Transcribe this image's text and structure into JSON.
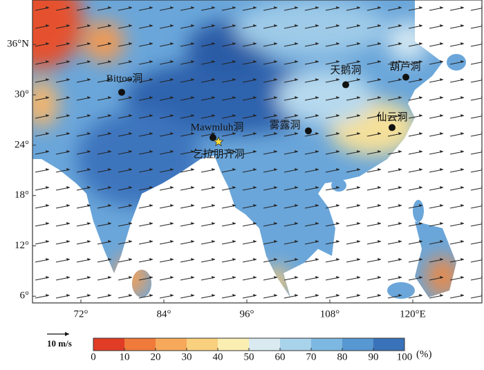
{
  "chart_data": {
    "type": "map",
    "xlim": [
      65,
      130
    ],
    "ylim": [
      5.2,
      41.3
    ],
    "xticks": [
      {
        "value": 72,
        "label": "72°"
      },
      {
        "value": 84,
        "label": "84°"
      },
      {
        "value": 96,
        "label": "96°"
      },
      {
        "value": 108,
        "label": "108°"
      },
      {
        "value": 120,
        "label": "120°E"
      }
    ],
    "yticks": [
      {
        "value": 6,
        "label": "6°"
      },
      {
        "value": 12,
        "label": "12°"
      },
      {
        "value": 18,
        "label": "18°"
      },
      {
        "value": 24,
        "label": "24°"
      },
      {
        "value": 30,
        "label": "30°"
      },
      {
        "value": 36,
        "label": "36°N"
      }
    ],
    "points": [
      {
        "name": "Bittoo洞",
        "lon": 77.9,
        "lat": 30.3,
        "marker": "dot"
      },
      {
        "name": "Mawmluh洞",
        "lon": 91.1,
        "lat": 24.9,
        "marker": "dot"
      },
      {
        "name": "乞拉朋齐洞",
        "lon": 91.9,
        "lat": 24.4,
        "marker": "star"
      },
      {
        "name": "雾露洞",
        "lon": 104.9,
        "lat": 25.7,
        "marker": "dot"
      },
      {
        "name": "天鹅洞",
        "lon": 110.3,
        "lat": 31.2,
        "marker": "dot"
      },
      {
        "name": "葫芦洞",
        "lon": 119,
        "lat": 32.1,
        "marker": "dot"
      },
      {
        "name": "仙云洞",
        "lon": 117,
        "lat": 26.1,
        "marker": "dot"
      }
    ],
    "vector_scale_label": "10 m/s",
    "colorbar": {
      "lim": [
        0,
        100
      ],
      "ticks": [
        0,
        10,
        20,
        30,
        40,
        50,
        60,
        70,
        80,
        90,
        100
      ],
      "unit": "(%)",
      "colors": [
        "#e03c26",
        "#ef7a3a",
        "#f6a95a",
        "#f9d07e",
        "#fbeeb2",
        "#d9ebf1",
        "#a9d2eb",
        "#7db8e2",
        "#5797d2",
        "#3a72b9"
      ]
    }
  }
}
